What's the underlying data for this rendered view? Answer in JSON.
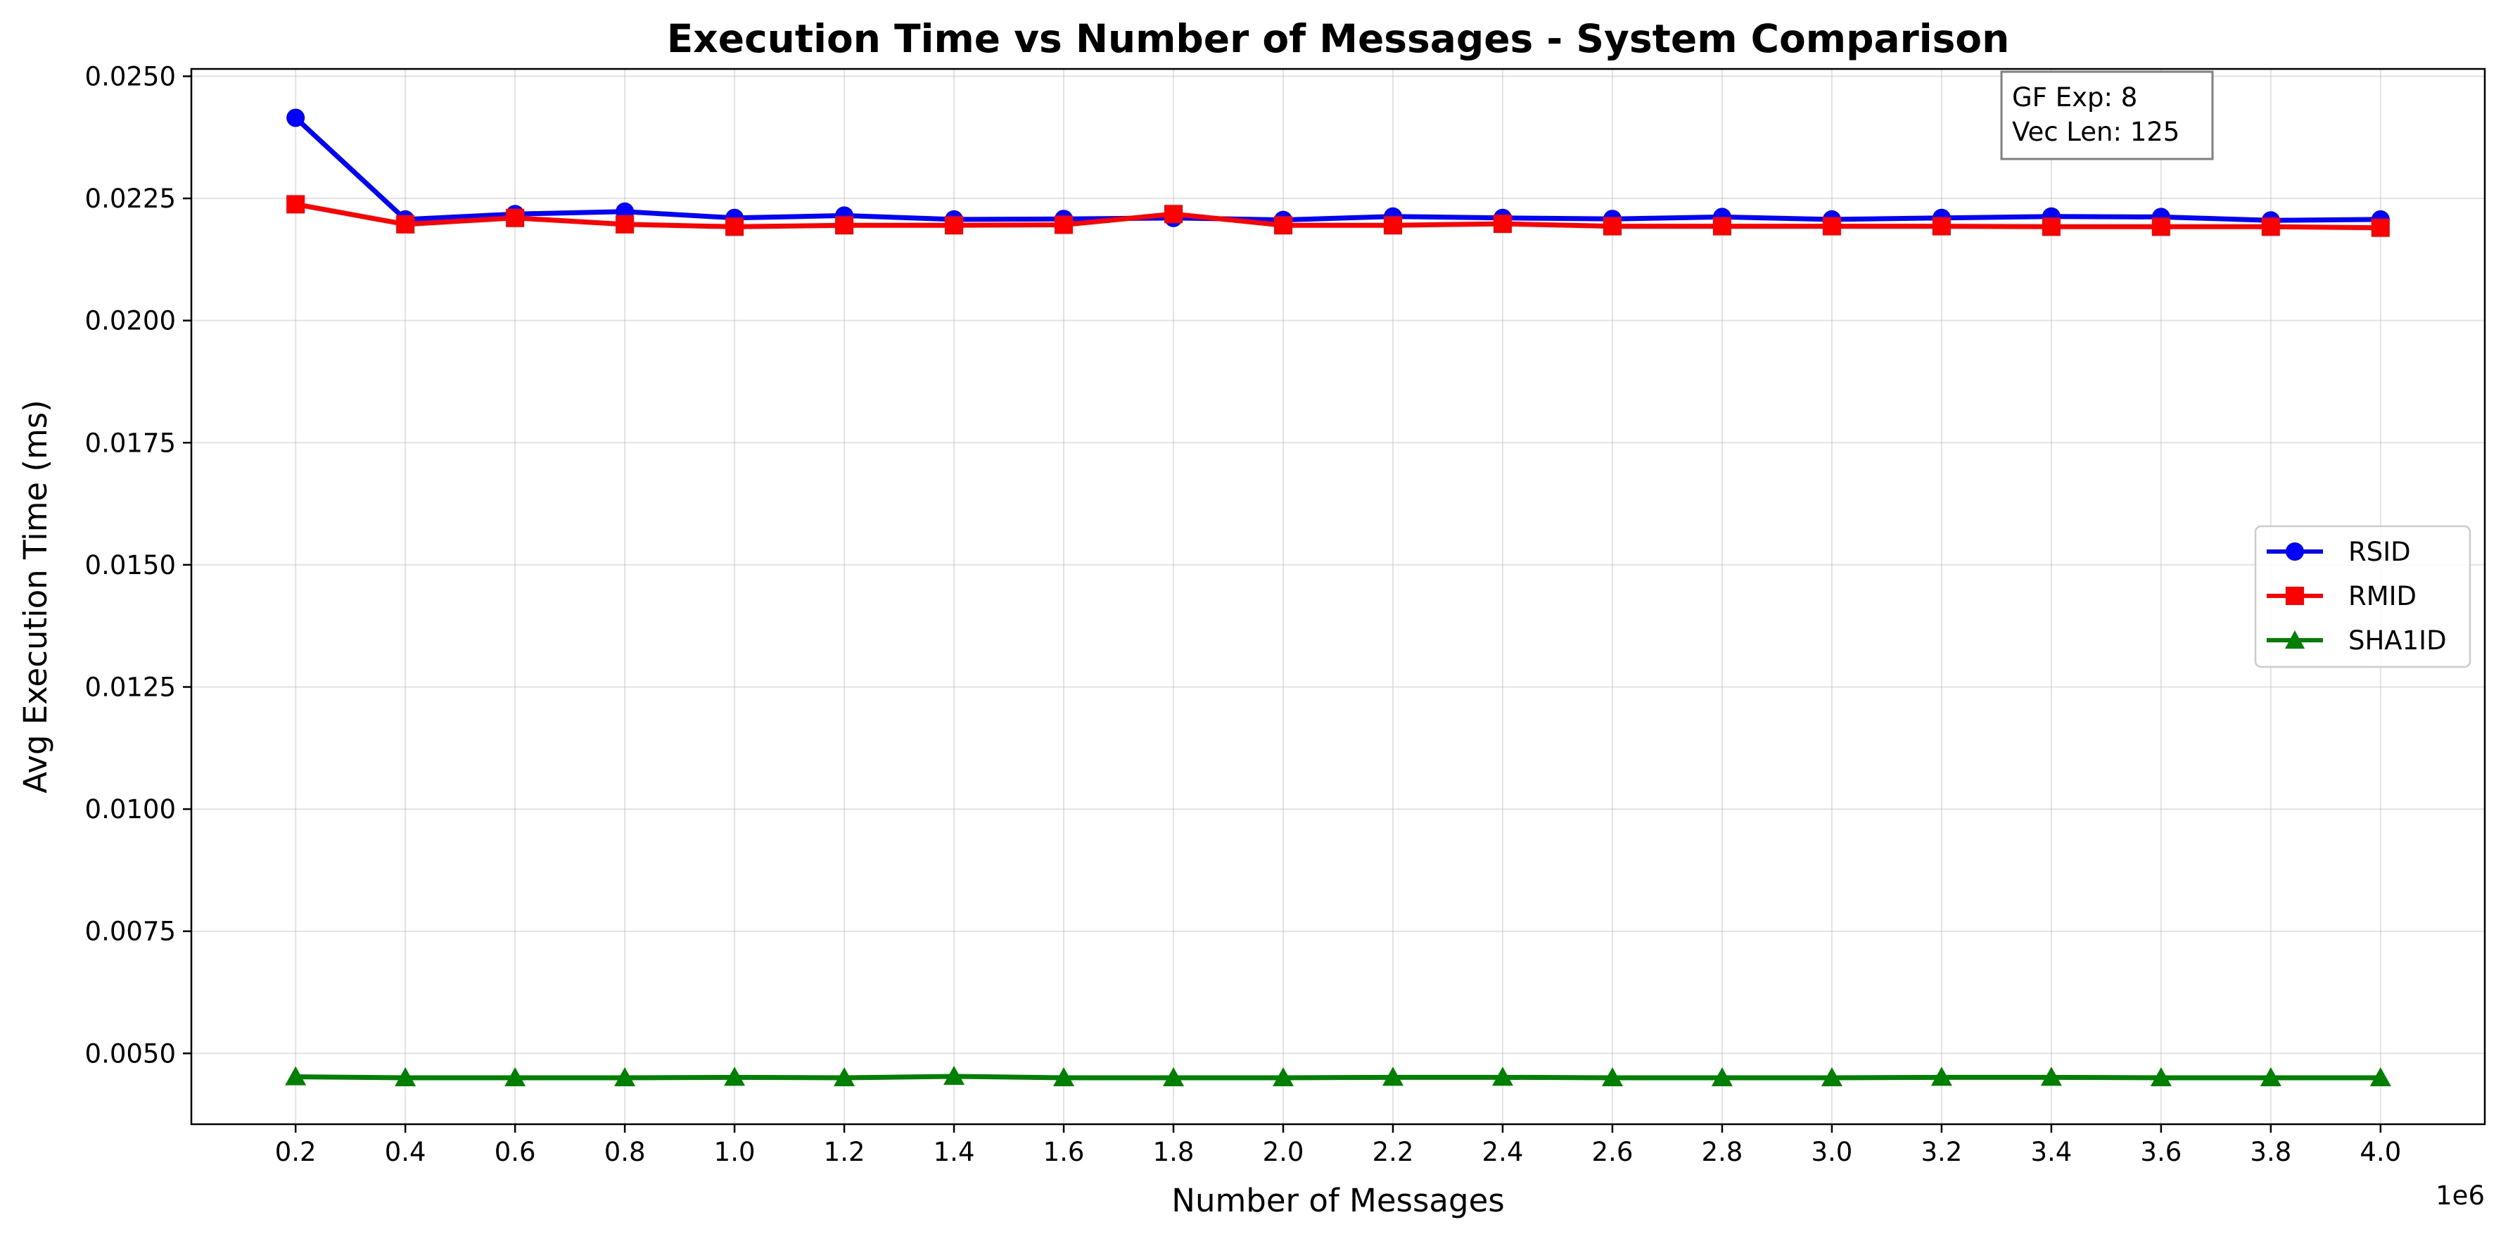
{
  "chart_data": {
    "type": "line",
    "title": "Execution Time vs Number of Messages - System Comparison",
    "xlabel": "Number of Messages",
    "ylabel": "Avg Execution Time (ms)",
    "x_offset_label": "1e6",
    "x": [
      0.2,
      0.4,
      0.6,
      0.8,
      1.0,
      1.2,
      1.4,
      1.6,
      1.8,
      2.0,
      2.2,
      2.4,
      2.6,
      2.8,
      3.0,
      3.2,
      3.4,
      3.6,
      3.8,
      4.0
    ],
    "x_ticks": [
      "0.2",
      "0.4",
      "0.6",
      "0.8",
      "1.0",
      "1.2",
      "1.4",
      "1.6",
      "1.8",
      "2.0",
      "2.2",
      "2.4",
      "2.6",
      "2.8",
      "3.0",
      "3.2",
      "3.4",
      "3.6",
      "3.8",
      "4.0"
    ],
    "y_ticks": [
      "0.0050",
      "0.0075",
      "0.0100",
      "0.0125",
      "0.0150",
      "0.0175",
      "0.0200",
      "0.0225",
      "0.0250"
    ],
    "xlim": [
      0.01,
      4.19
    ],
    "ylim": [
      0.00355,
      0.02515
    ],
    "grid": true,
    "legend_position": "center-right",
    "series": [
      {
        "name": "RSID",
        "color": "#0000ff",
        "marker": "circle",
        "values": [
          0.02415,
          0.02207,
          0.02218,
          0.02223,
          0.0221,
          0.02215,
          0.02207,
          0.02208,
          0.0221,
          0.02206,
          0.02213,
          0.0221,
          0.02208,
          0.02212,
          0.02207,
          0.0221,
          0.02213,
          0.02212,
          0.02205,
          0.02207
        ]
      },
      {
        "name": "RMID",
        "color": "#ff0000",
        "marker": "square",
        "values": [
          0.02238,
          0.02197,
          0.0221,
          0.02197,
          0.02192,
          0.02195,
          0.02195,
          0.02196,
          0.02218,
          0.02195,
          0.02195,
          0.02198,
          0.02193,
          0.02193,
          0.02193,
          0.02193,
          0.02192,
          0.02192,
          0.02192,
          0.0219
        ]
      },
      {
        "name": "SHA1ID",
        "color": "#008000",
        "marker": "triangle",
        "values": [
          0.00452,
          0.0045,
          0.0045,
          0.0045,
          0.00451,
          0.0045,
          0.00453,
          0.0045,
          0.0045,
          0.0045,
          0.00451,
          0.00451,
          0.0045,
          0.0045,
          0.0045,
          0.00451,
          0.00451,
          0.0045,
          0.0045,
          0.0045
        ]
      }
    ],
    "annotation": {
      "line1": "GF Exp: 8",
      "line2": "Vec Len: 125"
    }
  }
}
